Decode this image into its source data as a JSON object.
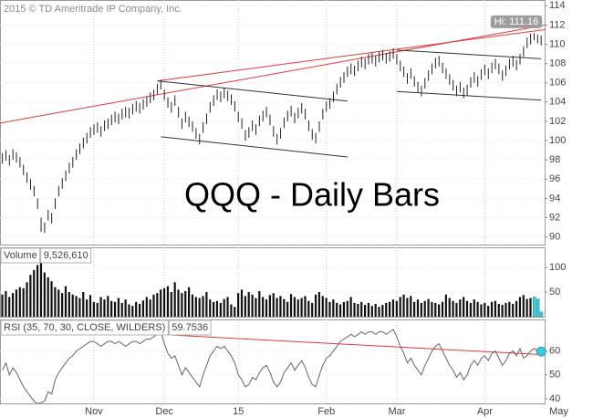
{
  "chart_data": [
    {
      "type": "ohlc",
      "title": "QQQ - Daily Bars",
      "copyright": "2015 © TD Ameritrade IP Company, Inc.",
      "hi_label": "Hi: 111.16",
      "color": "#222222",
      "high": [
        98.7,
        99.0,
        98.5,
        99.1,
        98.8,
        98.3,
        97.5,
        96.7,
        96.0,
        95.3,
        94.0,
        92.0,
        91.5,
        92.8,
        92.5,
        94.0,
        95.3,
        96.1,
        96.9,
        97.7,
        98.3,
        99.1,
        99.7,
        100.3,
        100.8,
        101.4,
        101.7,
        101.9,
        101.5,
        102.1,
        102.3,
        102.7,
        103.0,
        102.8,
        103.3,
        103.5,
        103.4,
        103.8,
        104.1,
        103.9,
        104.3,
        104.6,
        105.0,
        105.3,
        105.9,
        106.3,
        105.3,
        104.5,
        104.0,
        104.7,
        103.5,
        102.3,
        103.0,
        102.5,
        102.0,
        101.3,
        100.7,
        101.9,
        102.8,
        104.0,
        104.7,
        105.3,
        105.1,
        105.5,
        105.2,
        104.8,
        104.1,
        103.0,
        102.3,
        101.1,
        101.4,
        102.1,
        101.7,
        102.6,
        103.1,
        103.5,
        102.7,
        101.5,
        100.7,
        101.3,
        102.4,
        103.1,
        103.6,
        102.9,
        103.4,
        103.9,
        103.3,
        102.1,
        101.2,
        100.8,
        102.0,
        103.3,
        104.1,
        104.4,
        105.1,
        105.9,
        106.6,
        107.1,
        107.7,
        108.0,
        107.8,
        108.3,
        108.7,
        108.5,
        109.0,
        109.1,
        108.8,
        109.2,
        109.4,
        109.1,
        109.3,
        109.6,
        109.0,
        108.3,
        107.7,
        107.0,
        107.5,
        106.7,
        106.1,
        105.7,
        106.5,
        107.3,
        108.0,
        108.6,
        108.8,
        108.1,
        107.5,
        106.9,
        106.3,
        105.7,
        106.1,
        105.5,
        105.8,
        106.6,
        107.1,
        106.7,
        107.4,
        107.9,
        107.5,
        108.1,
        108.5,
        108.0,
        107.3,
        107.8,
        108.5,
        108.8,
        108.4,
        109.0,
        109.8,
        110.7,
        111.1,
        111.16,
        111.0,
        110.9,
        null,
        null,
        null,
        null,
        null,
        null
      ],
      "low": [
        97.6,
        97.9,
        97.4,
        98.0,
        97.7,
        97.2,
        96.4,
        95.6,
        94.9,
        94.2,
        92.9,
        90.5,
        90.4,
        91.7,
        91.4,
        92.9,
        94.2,
        95.0,
        95.8,
        96.6,
        97.2,
        98.0,
        98.6,
        99.2,
        99.7,
        100.3,
        100.6,
        100.8,
        100.4,
        101.0,
        101.2,
        101.6,
        101.9,
        101.7,
        102.2,
        102.4,
        102.3,
        102.7,
        103.0,
        102.8,
        103.2,
        103.5,
        103.9,
        104.2,
        104.8,
        105.3,
        104.2,
        103.4,
        102.9,
        103.6,
        102.4,
        101.2,
        101.9,
        101.4,
        100.9,
        100.2,
        99.6,
        100.8,
        101.7,
        102.9,
        103.6,
        104.2,
        104.0,
        104.4,
        104.1,
        103.7,
        103.0,
        101.9,
        101.2,
        100.0,
        100.3,
        101.0,
        100.6,
        101.5,
        102.0,
        102.4,
        101.6,
        100.4,
        99.6,
        100.2,
        101.3,
        102.0,
        102.5,
        101.8,
        102.3,
        102.8,
        102.2,
        101.0,
        100.1,
        99.7,
        100.9,
        102.2,
        103.0,
        103.3,
        104.0,
        104.8,
        105.5,
        106.0,
        106.6,
        106.9,
        106.7,
        107.2,
        107.6,
        107.4,
        107.9,
        108.0,
        107.7,
        108.1,
        108.3,
        108.0,
        108.2,
        108.5,
        107.9,
        107.2,
        106.6,
        105.9,
        106.4,
        105.6,
        105.0,
        104.6,
        105.4,
        106.2,
        106.9,
        107.5,
        107.7,
        107.0,
        106.4,
        105.8,
        105.2,
        104.6,
        105.0,
        104.4,
        104.7,
        105.5,
        106.0,
        105.6,
        106.3,
        106.8,
        106.4,
        107.0,
        107.4,
        106.9,
        106.2,
        106.7,
        107.4,
        107.7,
        107.3,
        107.9,
        108.7,
        109.6,
        110.0,
        110.4,
        110.1,
        109.9,
        null,
        null,
        null,
        null,
        null,
        null
      ],
      "ylim": [
        89.2,
        114.6
      ],
      "yticks": [
        90,
        92,
        94,
        96,
        98,
        100,
        102,
        104,
        106,
        108,
        110,
        112,
        114
      ],
      "grid": true,
      "trendlines": [
        {
          "color": "#e03a3a",
          "points": [
            [
              -1,
              101.8
            ],
            [
              168,
              112.9
            ]
          ]
        },
        {
          "color": "#e03a3a",
          "points": [
            [
              44,
              106.2
            ],
            [
              168,
              112.2
            ]
          ]
        },
        {
          "color": "#333333",
          "points": [
            [
              44,
              106.2
            ],
            [
              98,
              104.1
            ]
          ]
        },
        {
          "color": "#333333",
          "points": [
            [
              45,
              100.4
            ],
            [
              98,
              98.3
            ]
          ]
        },
        {
          "color": "#333333",
          "points": [
            [
              112,
              109.4
            ],
            [
              153,
              108.5
            ]
          ]
        },
        {
          "color": "#333333",
          "points": [
            [
              112,
              105.1
            ],
            [
              153,
              104.2
            ]
          ]
        }
      ]
    },
    {
      "type": "bar",
      "label": "Volume",
      "current_label": "9,526,610",
      "color": "#111111",
      "highlight_color": "#3cc8e0",
      "values": [
        45,
        52,
        40,
        48,
        55,
        60,
        58,
        70,
        85,
        95,
        105,
        112,
        90,
        80,
        72,
        60,
        55,
        48,
        62,
        50,
        45,
        42,
        38,
        50,
        35,
        44,
        30,
        28,
        40,
        35,
        42,
        32,
        30,
        38,
        28,
        35,
        25,
        22,
        30,
        26,
        33,
        40,
        35,
        45,
        48,
        55,
        58,
        62,
        50,
        70,
        55,
        48,
        52,
        60,
        45,
        40,
        38,
        42,
        50,
        35,
        30,
        32,
        28,
        36,
        40,
        25,
        20,
        48,
        55,
        42,
        50,
        45,
        38,
        52,
        40,
        35,
        44,
        48,
        38,
        42,
        36,
        30,
        46,
        40,
        35,
        38,
        42,
        32,
        28,
        45,
        50,
        42,
        38,
        30,
        35,
        28,
        25,
        30,
        32,
        40,
        28,
        26,
        30,
        24,
        28,
        22,
        26,
        20,
        24,
        28,
        30,
        35,
        32,
        40,
        45,
        38,
        42,
        30,
        35,
        28,
        32,
        36,
        30,
        28,
        25,
        30,
        45,
        38,
        32,
        28,
        35,
        40,
        32,
        28,
        35,
        30,
        25,
        28,
        22,
        30,
        32,
        26,
        24,
        28,
        30,
        26,
        32,
        40,
        44,
        36,
        38,
        40,
        36,
        9.52661,
        null,
        null,
        null,
        null,
        null,
        null
      ],
      "ylim": [
        0,
        141
      ],
      "yticks": [
        50,
        100
      ],
      "grid": true
    },
    {
      "type": "line",
      "label": "RSI (35, 70, 30, CLOSE, WILDERS)",
      "color": "#666666",
      "highlight_color": "#3cc8e0",
      "values": [
        52,
        55,
        50,
        53,
        51,
        48,
        45,
        43,
        41,
        39,
        38,
        38.5,
        39,
        43,
        42,
        48,
        51,
        53,
        55,
        57,
        58,
        60,
        61,
        62,
        63,
        64,
        64,
        63,
        62,
        63,
        64,
        64,
        63,
        64,
        63,
        62,
        63,
        64,
        64,
        63,
        64,
        65,
        65,
        66,
        67,
        68,
        63,
        59,
        57,
        58,
        54,
        50,
        53,
        51,
        49,
        47,
        45,
        50,
        54,
        58,
        60,
        62,
        61,
        62,
        60,
        58,
        55,
        50,
        48,
        45,
        46,
        49,
        48,
        51,
        53,
        54,
        51,
        47,
        45,
        47,
        51,
        53,
        55,
        52,
        54,
        56,
        53,
        49,
        46,
        45,
        50,
        54,
        57,
        58,
        60,
        62,
        64,
        65,
        66,
        67,
        66,
        67,
        68,
        67,
        68,
        68,
        67,
        68,
        68,
        67,
        68,
        69,
        66,
        62,
        59,
        55,
        57,
        54,
        52,
        50,
        54,
        57,
        60,
        62,
        63,
        60,
        57,
        54,
        52,
        49,
        51,
        48,
        50,
        54,
        56,
        54,
        57,
        58,
        56,
        59,
        60,
        57,
        54,
        56,
        59,
        60,
        58,
        61,
        57,
        58,
        60,
        61,
        60,
        59.7536,
        null,
        null,
        null,
        null,
        null,
        null
      ],
      "categories": [
        null,
        null,
        null,
        null,
        null,
        null,
        null,
        null,
        null,
        null,
        null,
        null,
        null,
        null,
        null,
        null,
        null,
        null,
        null,
        null,
        null,
        null,
        null,
        null,
        null,
        null,
        "Nov",
        null,
        null,
        null,
        null,
        null,
        null,
        null,
        null,
        null,
        null,
        null,
        null,
        null,
        null,
        null,
        null,
        null,
        null,
        null,
        "Dec",
        null,
        null,
        null,
        null,
        null,
        null,
        null,
        null,
        null,
        null,
        null,
        null,
        null,
        null,
        null,
        null,
        null,
        null,
        null,
        null,
        "15",
        null,
        null,
        null,
        null,
        null,
        null,
        null,
        null,
        null,
        null,
        null,
        null,
        null,
        null,
        null,
        null,
        null,
        null,
        null,
        null,
        null,
        null,
        null,
        null,
        "Feb",
        null,
        null,
        null,
        null,
        null,
        null,
        null,
        null,
        null,
        null,
        null,
        null,
        null,
        null,
        null,
        null,
        null,
        null,
        null,
        "Mar",
        null,
        null,
        null,
        null,
        null,
        null,
        null,
        null,
        null,
        null,
        null,
        null,
        null,
        null,
        null,
        null,
        null,
        null,
        null,
        null,
        null,
        null,
        null,
        null,
        "Apr",
        null,
        null,
        null,
        null,
        null,
        null,
        null,
        null,
        null,
        null,
        null,
        null,
        null,
        null,
        null,
        null,
        null,
        null,
        null,
        null,
        "May",
        null
      ],
      "ylim": [
        38.1,
        73.2
      ],
      "yticks": [
        40,
        50,
        60
      ],
      "grid": true,
      "trendlines": [
        {
          "color": "#e03a3a",
          "points": [
            [
              44,
              67
            ],
            [
              153,
              58.5
            ]
          ]
        }
      ]
    }
  ]
}
